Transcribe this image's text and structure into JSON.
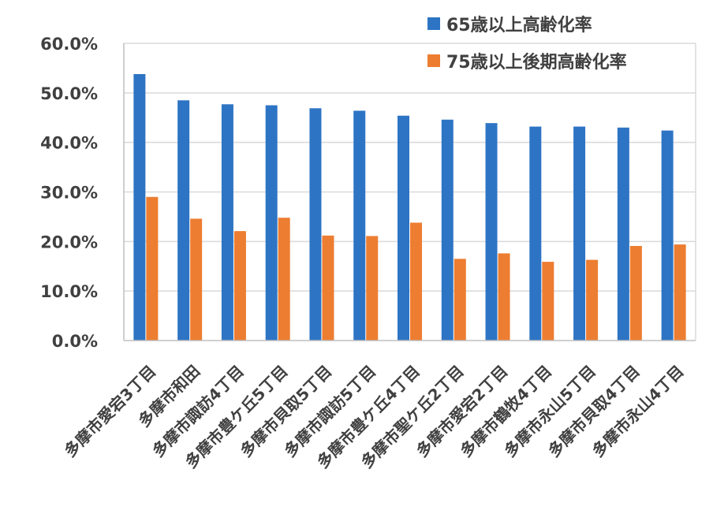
{
  "chart_data": {
    "type": "bar",
    "title": "",
    "xlabel": "",
    "ylabel": "",
    "ylim": [
      0,
      60
    ],
    "y_tick_values": [
      0,
      10,
      20,
      30,
      40,
      50,
      60
    ],
    "y_tick_labels": [
      "0.0%",
      "10.0%",
      "20.0%",
      "30.0%",
      "40.0%",
      "50.0%",
      "60.0%"
    ],
    "grid": true,
    "legend_position": "top-right",
    "categories": [
      "多摩市愛宕3丁目",
      "多摩市和田",
      "多摩市諏訪4丁目",
      "多摩市豊ケ丘5丁目",
      "多摩市貝取5丁目",
      "多摩市諏訪5丁目",
      "多摩市豊ケ丘4丁目",
      "多摩市聖ケ丘2丁目",
      "多摩市愛宕2丁目",
      "多摩市鶴牧4丁目",
      "多摩市永山5丁目",
      "多摩市貝取4丁目",
      "多摩市永山4丁目"
    ],
    "series": [
      {
        "name": "65歳以上高齢化率",
        "color": "#2E74C4",
        "values": [
          53.8,
          48.5,
          47.7,
          47.5,
          46.9,
          46.4,
          45.4,
          44.6,
          43.9,
          43.2,
          43.2,
          43.0,
          42.4
        ]
      },
      {
        "name": "75歳以上後期高齢化率",
        "color": "#ED7D31",
        "values": [
          29.0,
          24.6,
          22.1,
          24.8,
          21.2,
          21.1,
          23.8,
          16.5,
          17.6,
          15.9,
          16.3,
          19.1,
          19.4
        ]
      }
    ]
  }
}
